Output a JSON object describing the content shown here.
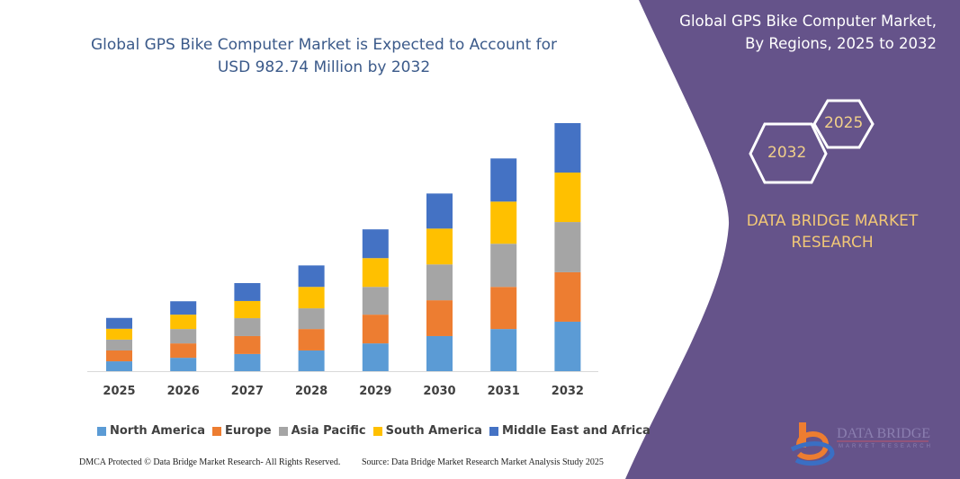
{
  "chart_data": {
    "type": "bar",
    "stacked": true,
    "title": "Global GPS Bike Computer Market is Expected to Account for USD 982.74 Million by 2032",
    "xlabel": "",
    "ylabel": "",
    "grid": false,
    "legend_placement": "bottom",
    "categories": [
      "2025",
      "2026",
      "2027",
      "2028",
      "2029",
      "2030",
      "2031",
      "2032"
    ],
    "series": [
      {
        "name": "North America",
        "color": "#5b9bd5",
        "values": [
          39,
          53,
          68,
          82,
          110,
          139,
          167,
          196
        ]
      },
      {
        "name": "Europe",
        "color": "#ed7d31",
        "values": [
          43,
          57,
          71,
          85,
          114,
          142,
          167,
          196
        ]
      },
      {
        "name": "Asia Pacific",
        "color": "#a5a5a5",
        "values": [
          43,
          57,
          71,
          82,
          110,
          142,
          171,
          199
        ]
      },
      {
        "name": "South America",
        "color": "#ffc000",
        "values": [
          43,
          57,
          68,
          85,
          114,
          142,
          167,
          196
        ]
      },
      {
        "name": "Middle East and Africa",
        "color": "#4472c4",
        "values": [
          43,
          53,
          71,
          85,
          114,
          139,
          171,
          196
        ]
      }
    ]
  },
  "footer": {
    "left": "DMCA Protected © Data Bridge Market Research-  All Rights Reserved.",
    "right": "Source: Data Bridge Market Research  Market Analysis Study 2025"
  },
  "panel": {
    "title_line1": "Global GPS Bike Computer Market,",
    "title_line2": "By Regions, 2025 to 2032",
    "hex_start": "2025",
    "hex_end": "2032",
    "brand_line1": "DATA BRIDGE MARKET",
    "brand_line2": "RESEARCH",
    "logo_text": "DATA BRIDGE",
    "logo_sub": "MARKET RESEARCH",
    "bg_color": "#65538a",
    "accent_color": "#f1c777"
  }
}
